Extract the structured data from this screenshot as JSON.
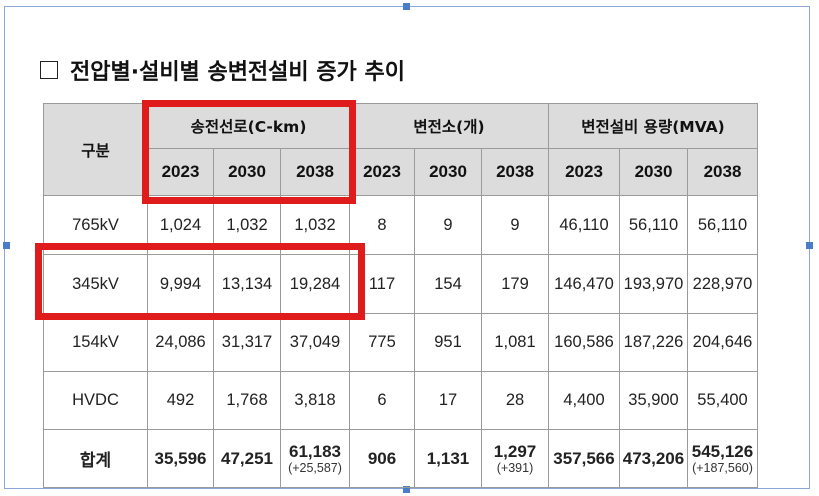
{
  "title": "전압별·설비별 송변전설비 증가 추이",
  "table": {
    "corner_label": "구분",
    "groups": [
      "송전선로(C-km)",
      "변전소(개)",
      "변전설비 용량(MVA)"
    ],
    "years": [
      "2023",
      "2030",
      "2038",
      "2023",
      "2030",
      "2038",
      "2023",
      "2030",
      "2038"
    ],
    "rows": [
      {
        "label": "765kV",
        "cells": [
          "1,024",
          "1,032",
          "1,032",
          "8",
          "9",
          "9",
          "46,110",
          "56,110",
          "56,110"
        ]
      },
      {
        "label": "345kV",
        "cells": [
          "9,994",
          "13,134",
          "19,284",
          "117",
          "154",
          "179",
          "146,470",
          "193,970",
          "228,970"
        ]
      },
      {
        "label": "154kV",
        "cells": [
          "24,086",
          "31,317",
          "37,049",
          "775",
          "951",
          "1,081",
          "160,586",
          "187,226",
          "204,646"
        ]
      },
      {
        "label": "HVDC",
        "cells": [
          "492",
          "1,768",
          "3,818",
          "6",
          "17",
          "28",
          "4,400",
          "35,900",
          "55,400"
        ]
      }
    ],
    "total": {
      "label": "합계",
      "cells": [
        {
          "value": "35,596",
          "sub": ""
        },
        {
          "value": "47,251",
          "sub": ""
        },
        {
          "value": "61,183",
          "sub": "(+25,587)"
        },
        {
          "value": "906",
          "sub": ""
        },
        {
          "value": "1,131",
          "sub": ""
        },
        {
          "value": "1,297",
          "sub": "(+391)"
        },
        {
          "value": "357,566",
          "sub": ""
        },
        {
          "value": "473,206",
          "sub": ""
        },
        {
          "value": "545,126",
          "sub": "(+187,560)"
        }
      ]
    }
  },
  "highlight_color": "#e01b1b"
}
